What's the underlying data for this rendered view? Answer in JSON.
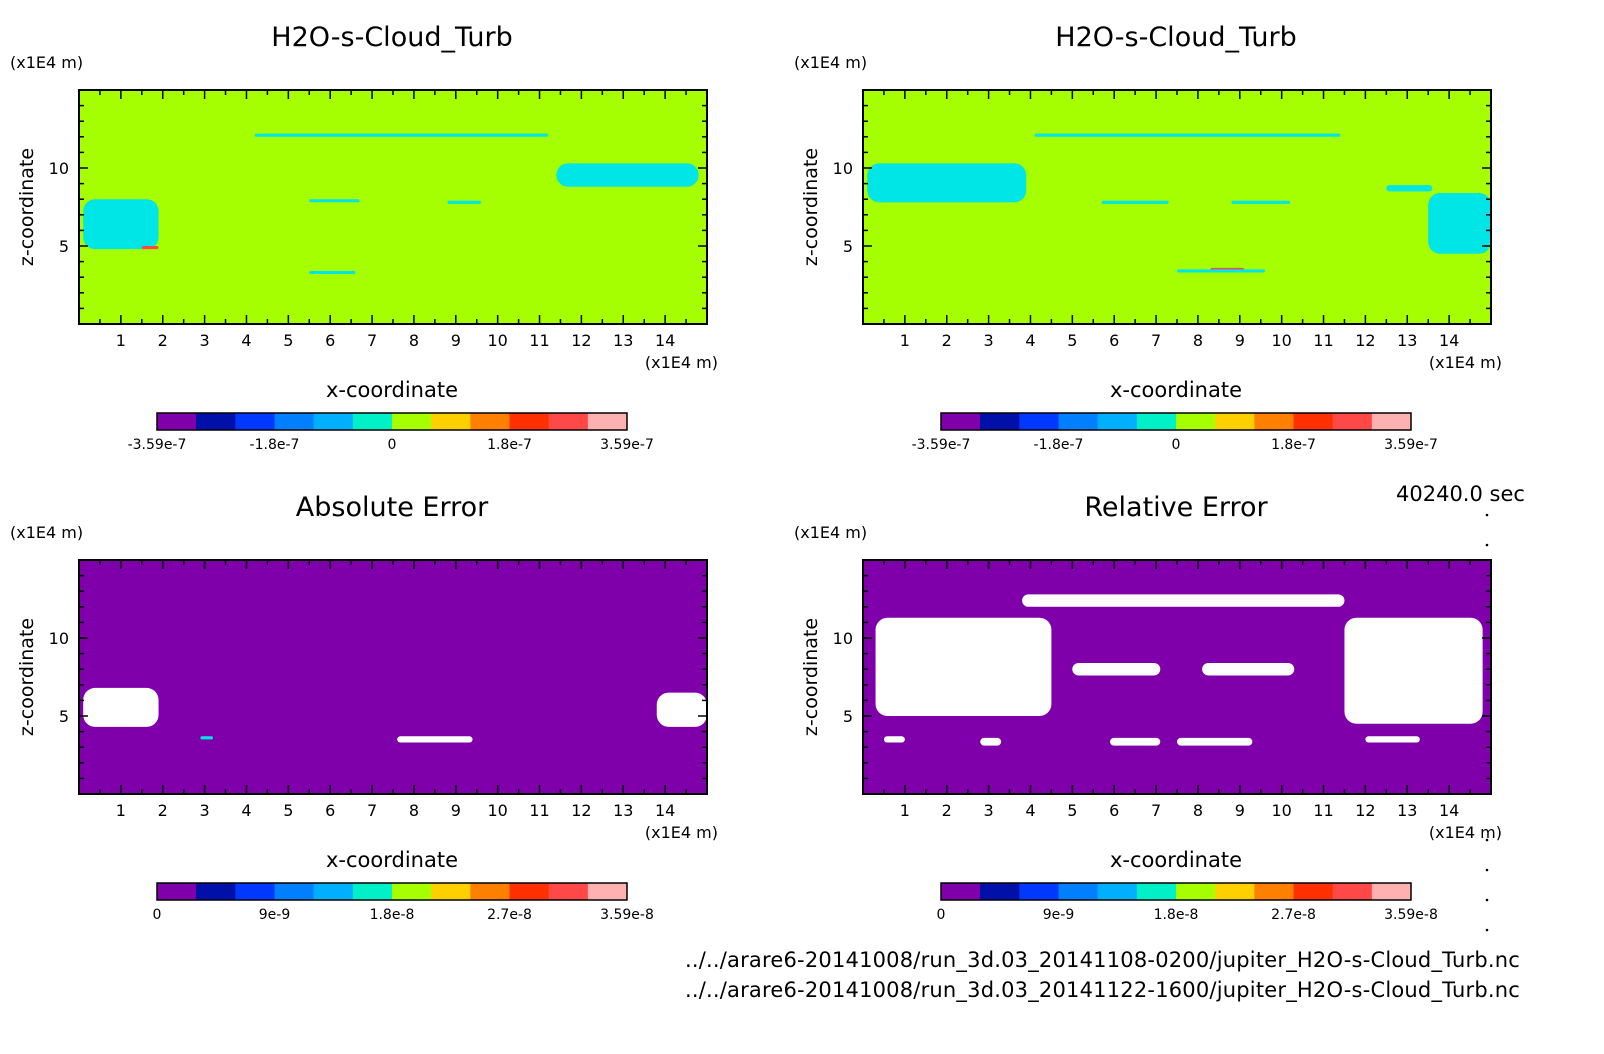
{
  "page": {
    "timestamp": "40240.0 sec",
    "files": [
      "../../arare6-20141008/run_3d.03_20141108-0200/jupiter_H2O-s-Cloud_Turb.nc",
      "../../arare6-20141008/run_3d.03_20141122-1600/jupiter_H2O-s-Cloud_Turb.nc"
    ]
  },
  "chart_data": [
    {
      "type": "heatmap",
      "title": "H2O-s-Cloud_Turb",
      "xlabel": "x-coordinate",
      "ylabel": "z-coordinate",
      "x_unit": "(x1E4 m)",
      "y_unit": "(x1E4 m)",
      "xlim": [
        0,
        15
      ],
      "ylim": [
        0,
        15
      ],
      "x_ticks": [
        1,
        2,
        3,
        4,
        5,
        6,
        7,
        8,
        9,
        10,
        11,
        12,
        13,
        14
      ],
      "y_ticks": [
        5,
        10
      ],
      "background_color": "#a6ff00",
      "colorbar": {
        "colors": [
          "#7f00aa",
          "#0010a8",
          "#0038ff",
          "#0080ff",
          "#00b0ff",
          "#00f0c8",
          "#a6ff00",
          "#ffd000",
          "#ff8000",
          "#ff3000",
          "#ff4848",
          "#ffb0b0"
        ],
        "tick_labels": [
          "-3.59e-7",
          "-1.8e-7",
          "0",
          "1.8e-7",
          "3.59e-7"
        ]
      },
      "features": [
        {
          "color": "#00e5e5",
          "x": [
            4.2,
            11.2
          ],
          "z": [
            12.2,
            12.0
          ]
        },
        {
          "color": "#00e5e5",
          "x": [
            11.4,
            14.8
          ],
          "z": [
            8.8,
            10.3
          ]
        },
        {
          "color": "#00e5e5",
          "x": [
            0.1,
            1.9
          ],
          "z": [
            4.8,
            8.0
          ]
        },
        {
          "color": "#ff4848",
          "x": [
            1.5,
            1.9
          ],
          "z": [
            4.8,
            5.0
          ]
        },
        {
          "color": "#00e5e5",
          "x": [
            5.5,
            6.7
          ],
          "z": [
            7.9,
            8.0
          ]
        },
        {
          "color": "#00e5e5",
          "x": [
            8.8,
            9.6
          ],
          "z": [
            7.7,
            7.9
          ]
        },
        {
          "color": "#00e5e5",
          "x": [
            5.5,
            6.6
          ],
          "z": [
            3.3,
            3.4
          ]
        }
      ]
    },
    {
      "type": "heatmap",
      "title": "H2O-s-Cloud_Turb",
      "xlabel": "x-coordinate",
      "ylabel": "z-coordinate",
      "x_unit": "(x1E4 m)",
      "y_unit": "(x1E4 m)",
      "xlim": [
        0,
        15
      ],
      "ylim": [
        0,
        15
      ],
      "x_ticks": [
        1,
        2,
        3,
        4,
        5,
        6,
        7,
        8,
        9,
        10,
        11,
        12,
        13,
        14
      ],
      "y_ticks": [
        5,
        10
      ],
      "background_color": "#a6ff00",
      "colorbar": {
        "colors": [
          "#7f00aa",
          "#0010a8",
          "#0038ff",
          "#0080ff",
          "#00b0ff",
          "#00f0c8",
          "#a6ff00",
          "#ffd000",
          "#ff8000",
          "#ff3000",
          "#ff4848",
          "#ffb0b0"
        ],
        "tick_labels": [
          "-3.59e-7",
          "-1.8e-7",
          "0",
          "1.8e-7",
          "3.59e-7"
        ]
      },
      "features": [
        {
          "color": "#00e5e5",
          "x": [
            4.1,
            11.4
          ],
          "z": [
            12.2,
            12.0
          ]
        },
        {
          "color": "#00e5e5",
          "x": [
            0.1,
            3.9
          ],
          "z": [
            7.8,
            10.3
          ]
        },
        {
          "color": "#00e5e5",
          "x": [
            5.7,
            7.3
          ],
          "z": [
            7.7,
            7.9
          ]
        },
        {
          "color": "#00e5e5",
          "x": [
            8.8,
            10.2
          ],
          "z": [
            7.7,
            7.9
          ]
        },
        {
          "color": "#00e5e5",
          "x": [
            12.5,
            13.6
          ],
          "z": [
            8.5,
            8.9
          ]
        },
        {
          "color": "#00e5e5",
          "x": [
            13.5,
            15.0
          ],
          "z": [
            4.5,
            8.4
          ]
        },
        {
          "color": "#ff4848",
          "x": [
            8.3,
            9.1
          ],
          "z": [
            3.4,
            3.6
          ]
        },
        {
          "color": "#00e5e5",
          "x": [
            7.5,
            9.6
          ],
          "z": [
            3.3,
            3.5
          ]
        }
      ]
    },
    {
      "type": "heatmap",
      "title": "Absolute Error",
      "xlabel": "x-coordinate",
      "ylabel": "z-coordinate",
      "x_unit": "(x1E4 m)",
      "y_unit": "(x1E4 m)",
      "xlim": [
        0,
        15
      ],
      "ylim": [
        0,
        15
      ],
      "x_ticks": [
        1,
        2,
        3,
        4,
        5,
        6,
        7,
        8,
        9,
        10,
        11,
        12,
        13,
        14
      ],
      "y_ticks": [
        5,
        10
      ],
      "background_color": "#7f00aa",
      "colorbar": {
        "colors": [
          "#7f00aa",
          "#0010a8",
          "#0038ff",
          "#0080ff",
          "#00b0ff",
          "#00f0c8",
          "#a6ff00",
          "#ffd000",
          "#ff8000",
          "#ff3000",
          "#ff4848",
          "#ffb0b0"
        ],
        "tick_labels": [
          "0",
          "9e-9",
          "1.8e-8",
          "2.7e-8",
          "3.59e-8"
        ]
      },
      "features": [
        {
          "color": "#ffffff",
          "x": [
            0.1,
            1.9
          ],
          "z": [
            4.3,
            6.8
          ]
        },
        {
          "color": "#ffffff",
          "x": [
            13.8,
            15.0
          ],
          "z": [
            4.3,
            6.5
          ]
        },
        {
          "color": "#ffffff",
          "x": [
            7.6,
            9.4
          ],
          "z": [
            3.3,
            3.7
          ]
        },
        {
          "color": "#00e5e5",
          "x": [
            2.9,
            3.2
          ],
          "z": [
            3.5,
            3.7
          ]
        }
      ]
    },
    {
      "type": "heatmap",
      "title": "Relative Error",
      "xlabel": "x-coordinate",
      "ylabel": "z-coordinate",
      "x_unit": "(x1E4 m)",
      "y_unit": "(x1E4 m)",
      "xlim": [
        0,
        15
      ],
      "ylim": [
        0,
        15
      ],
      "x_ticks": [
        1,
        2,
        3,
        4,
        5,
        6,
        7,
        8,
        9,
        10,
        11,
        12,
        13,
        14
      ],
      "y_ticks": [
        5,
        10
      ],
      "background_color": "#7f00aa",
      "colorbar": {
        "colors": [
          "#7f00aa",
          "#0010a8",
          "#0038ff",
          "#0080ff",
          "#00b0ff",
          "#00f0c8",
          "#a6ff00",
          "#ffd000",
          "#ff8000",
          "#ff3000",
          "#ff4848",
          "#ffb0b0"
        ],
        "tick_labels": [
          "0",
          "9e-9",
          "1.8e-8",
          "2.7e-8",
          "3.59e-8"
        ]
      },
      "features": [
        {
          "color": "#ffffff",
          "x": [
            3.8,
            11.5
          ],
          "z": [
            12.0,
            12.8
          ]
        },
        {
          "color": "#ffffff",
          "x": [
            0.3,
            4.5
          ],
          "z": [
            5.0,
            11.3
          ]
        },
        {
          "color": "#ffffff",
          "x": [
            11.5,
            14.8
          ],
          "z": [
            4.5,
            11.3
          ]
        },
        {
          "color": "#ffffff",
          "x": [
            5.0,
            7.1
          ],
          "z": [
            7.6,
            8.4
          ]
        },
        {
          "color": "#ffffff",
          "x": [
            8.1,
            10.3
          ],
          "z": [
            7.6,
            8.4
          ]
        },
        {
          "color": "#ffffff",
          "x": [
            5.9,
            7.1
          ],
          "z": [
            3.1,
            3.6
          ]
        },
        {
          "color": "#ffffff",
          "x": [
            7.5,
            9.3
          ],
          "z": [
            3.1,
            3.6
          ]
        },
        {
          "color": "#ffffff",
          "x": [
            2.8,
            3.3
          ],
          "z": [
            3.1,
            3.6
          ]
        },
        {
          "color": "#ffffff",
          "x": [
            0.5,
            1.0
          ],
          "z": [
            3.3,
            3.7
          ]
        },
        {
          "color": "#ffffff",
          "x": [
            12.0,
            13.3
          ],
          "z": [
            3.3,
            3.7
          ]
        }
      ]
    }
  ]
}
